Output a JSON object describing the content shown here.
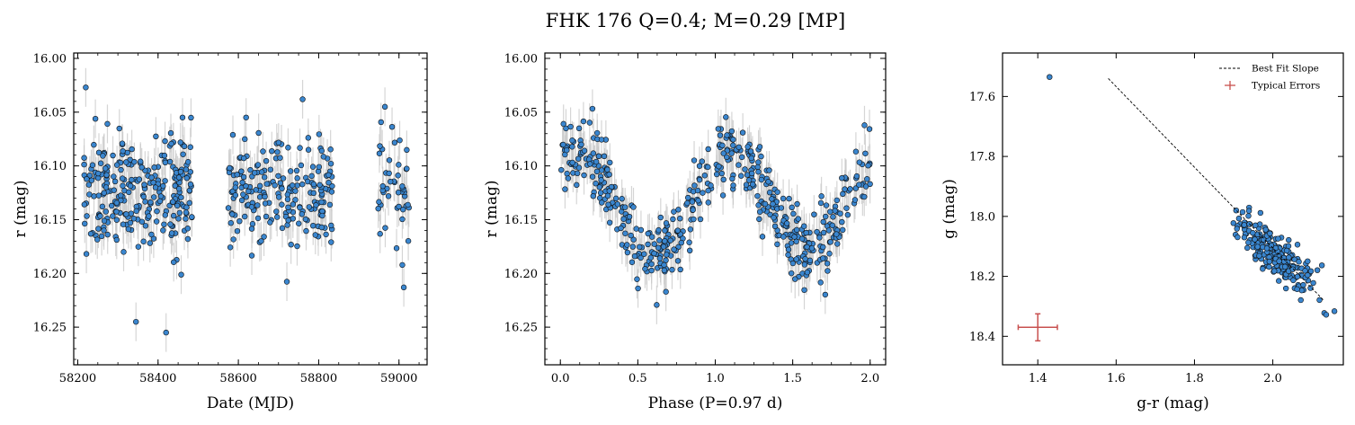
{
  "title": "FHK 176  Q=0.4; M=0.29 [MP]",
  "colors": {
    "point": "#3a86cf",
    "edge": "#111111",
    "errorbar": "#c8c8c8",
    "typical_error": "#c8504f",
    "fit": "#000000"
  },
  "chart_data": [
    {
      "type": "scatter",
      "id": "lightcurve-date",
      "xlabel": "Date (MJD)",
      "ylabel": "r (mag)",
      "xlim": [
        58190,
        59070
      ],
      "ylim": [
        16.285,
        15.995
      ],
      "y_inverted": true,
      "xticks": [
        58200,
        58400,
        58600,
        58800,
        59000
      ],
      "xtick_labels": [
        "58200",
        "58400",
        "58600",
        "58800",
        "59000"
      ],
      "yticks": [
        16.0,
        16.05,
        16.1,
        16.15,
        16.2,
        16.25
      ],
      "ytick_labels": [
        "16.00",
        "16.05",
        "16.10",
        "16.15",
        "16.20",
        "16.25"
      ],
      "seasons": [
        {
          "x_range": [
            58215,
            58485
          ],
          "y_mean": 16.125,
          "y_spread": 0.048,
          "n": 260
        },
        {
          "x_range": [
            58575,
            58835
          ],
          "y_mean": 16.122,
          "y_spread": 0.045,
          "n": 200
        },
        {
          "x_range": [
            58945,
            59025
          ],
          "y_mean": 16.128,
          "y_spread": 0.04,
          "n": 45
        }
      ],
      "highlights": [
        {
          "x": 58220,
          "y": 16.027
        },
        {
          "x": 58420,
          "y": 16.255
        },
        {
          "x": 58760,
          "y": 16.038
        },
        {
          "x": 58965,
          "y": 16.045
        },
        {
          "x": 59012,
          "y": 16.213
        },
        {
          "x": 58345,
          "y": 16.245
        }
      ],
      "point_error": 0.018,
      "legend": null
    },
    {
      "type": "scatter",
      "id": "lightcurve-phase",
      "xlabel": "Phase (P=0.97 d)",
      "ylabel": "r (mag)",
      "xlim": [
        -0.1,
        2.1
      ],
      "ylim": [
        16.285,
        15.995
      ],
      "y_inverted": true,
      "xticks": [
        0.0,
        0.5,
        1.0,
        1.5,
        2.0
      ],
      "xtick_labels": [
        "0.0",
        "0.5",
        "1.0",
        "1.5",
        "2.0"
      ],
      "yticks": [
        16.0,
        16.05,
        16.1,
        16.15,
        16.2,
        16.25
      ],
      "ytick_labels": [
        "16.00",
        "16.05",
        "16.10",
        "16.15",
        "16.20",
        "16.25"
      ],
      "model": {
        "mean": 16.135,
        "amplitude": 0.048,
        "period_phase": 1.0,
        "max_phase": 0.1
      },
      "phase_range": [
        0.0,
        2.0
      ],
      "n": 500,
      "point_error": 0.018,
      "legend": null
    },
    {
      "type": "scatter",
      "id": "color-magnitude",
      "xlabel": "g-r (mag)",
      "ylabel": "g (mag)",
      "xlim": [
        1.31,
        2.18
      ],
      "ylim": [
        18.495,
        17.455
      ],
      "y_inverted": true,
      "xticks": [
        1.4,
        1.6,
        1.8,
        2.0
      ],
      "xtick_labels": [
        "1.4",
        "1.6",
        "1.8",
        "2.0"
      ],
      "yticks": [
        17.6,
        17.8,
        18.0,
        18.2,
        18.4
      ],
      "ytick_labels": [
        "17.6",
        "17.8",
        "18.0",
        "18.2",
        "18.4"
      ],
      "cluster": {
        "x_range": [
          1.89,
          2.16
        ],
        "slope": 1.08,
        "center_x": 2.0,
        "center_y": 18.12,
        "spread": 0.045,
        "n": 230
      },
      "outlier": {
        "x": 1.43,
        "y": 17.535
      },
      "best_fit": {
        "x": [
          1.58,
          2.13
        ],
        "y": [
          17.54,
          18.28
        ]
      },
      "typical_error": {
        "x": 1.4,
        "y": 18.37,
        "xerr": 0.05,
        "yerr": 0.045
      },
      "legend": {
        "position": "top-right",
        "entries": [
          "Best Fit Slope",
          "Typical Errors"
        ]
      }
    }
  ]
}
